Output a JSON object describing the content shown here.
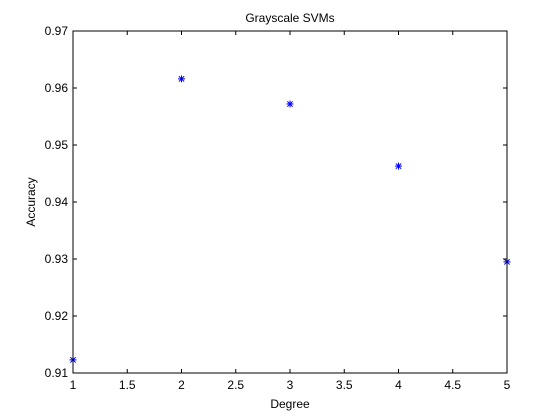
{
  "chart_data": {
    "type": "scatter",
    "title": "Grayscale SVMs",
    "xlabel": "Degree",
    "ylabel": "Accuracy",
    "xlim": [
      1,
      5
    ],
    "ylim": [
      0.91,
      0.97
    ],
    "xticks": [
      1,
      1.5,
      2,
      2.5,
      3,
      3.5,
      4,
      4.5,
      5
    ],
    "xtick_labels": [
      "1",
      "1.5",
      "2",
      "2.5",
      "3",
      "3.5",
      "4",
      "4.5",
      "5"
    ],
    "yticks": [
      0.91,
      0.92,
      0.93,
      0.94,
      0.95,
      0.96,
      0.97
    ],
    "ytick_labels": [
      "0.91",
      "0.92",
      "0.93",
      "0.94",
      "0.95",
      "0.96",
      "0.97"
    ],
    "grid": false,
    "marker": "*",
    "marker_color": "#0000ff",
    "series": [
      {
        "x": [
          1,
          2,
          3,
          4,
          5
        ],
        "y": [
          0.9123,
          0.9616,
          0.9572,
          0.9463,
          0.9295
        ]
      }
    ]
  }
}
